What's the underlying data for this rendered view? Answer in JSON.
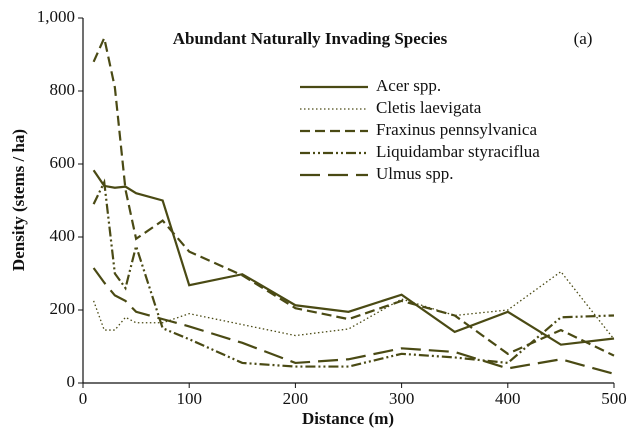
{
  "chart_data": {
    "type": "line",
    "title": "Abundant Naturally Invading Species",
    "annotation": "(a)",
    "x_label": "Distance (m)",
    "y_label": "Density (stems / ha)",
    "x": [
      10,
      20,
      30,
      40,
      50,
      75,
      100,
      150,
      200,
      250,
      300,
      350,
      400,
      450,
      500
    ],
    "series": [
      {
        "name": "Acer spp.",
        "color": "#4a4a14",
        "linestyle": "solid",
        "values": [
          583,
          540,
          535,
          538,
          520,
          500,
          268,
          298,
          213,
          195,
          242,
          140,
          195,
          105,
          122
        ]
      },
      {
        "name": "Cletis laevigata",
        "color": "#4a4a14",
        "linestyle": "dotted",
        "values": [
          225,
          145,
          145,
          180,
          165,
          165,
          190,
          160,
          130,
          148,
          230,
          185,
          200,
          305,
          120
        ]
      },
      {
        "name": "Fraxinus pennsylvanica",
        "color": "#4a4a14",
        "linestyle": "dashed",
        "values": [
          880,
          945,
          810,
          530,
          395,
          445,
          360,
          295,
          205,
          175,
          225,
          185,
          80,
          145,
          75
        ]
      },
      {
        "name": "Liquidambar styraciflua",
        "color": "#4a4a14",
        "linestyle": "dashdotdot",
        "values": [
          490,
          550,
          300,
          260,
          375,
          150,
          120,
          55,
          45,
          45,
          80,
          70,
          55,
          180,
          185
        ]
      },
      {
        "name": "Ulmus spp.",
        "color": "#4a4a14",
        "linestyle": "longdash",
        "values": [
          315,
          275,
          240,
          225,
          195,
          175,
          155,
          110,
          55,
          65,
          95,
          85,
          40,
          65,
          25
        ]
      }
    ],
    "xlim": [
      0,
      500
    ],
    "xticks": [
      0,
      100,
      200,
      300,
      400,
      500
    ],
    "ylim": [
      0,
      1000
    ],
    "yticks": [
      0,
      200,
      400,
      600,
      800,
      {
        "value": 1000,
        "label": "1,000"
      }
    ],
    "legend": "upper right"
  }
}
